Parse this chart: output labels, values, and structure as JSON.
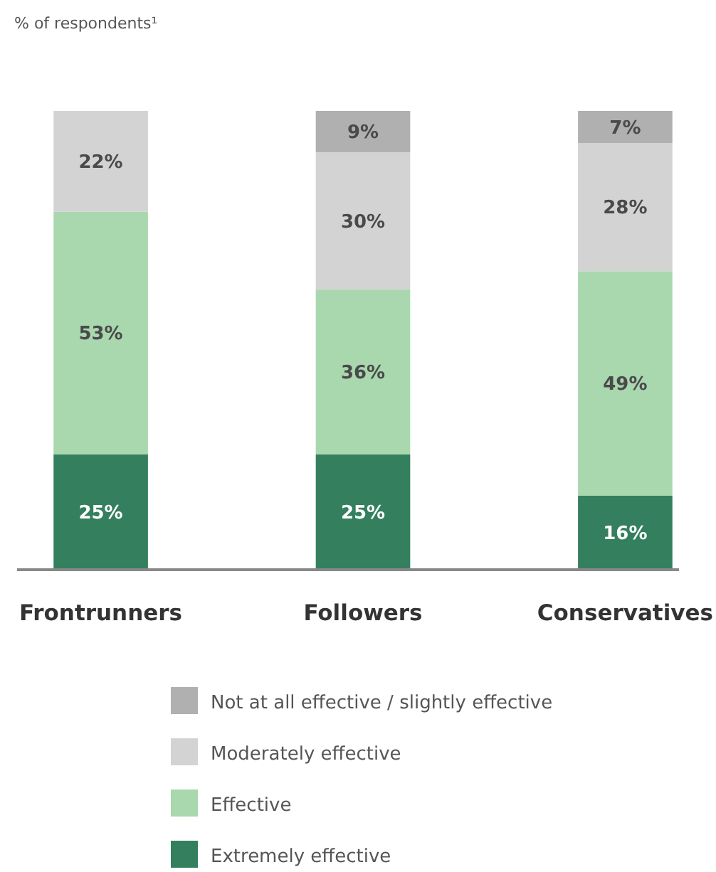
{
  "chart_data": {
    "type": "bar",
    "stacked": true,
    "subtitle": "% of respondents¹",
    "categories": [
      "Frontrunners",
      "Followers",
      "Conservatives"
    ],
    "series": [
      {
        "name": "Extremely effective",
        "color": "#337f5e",
        "values": [
          25,
          25,
          16
        ],
        "value_labels": [
          "25%",
          "25%",
          "16%"
        ]
      },
      {
        "name": "Effective",
        "color": "#a9d7ae",
        "values": [
          53,
          36,
          49
        ],
        "value_labels": [
          "53%",
          "36%",
          "49%"
        ]
      },
      {
        "name": "Moderately effective",
        "color": "#d3d3d3",
        "values": [
          22,
          30,
          28
        ],
        "value_labels": [
          "22%",
          "30%",
          "28%"
        ]
      },
      {
        "name": "Not at all effective / slightly effective",
        "color": "#b0b0b0",
        "values": [
          null,
          9,
          7
        ],
        "value_labels": [
          null,
          "9%",
          "7%"
        ]
      }
    ],
    "legend": "bottom"
  }
}
